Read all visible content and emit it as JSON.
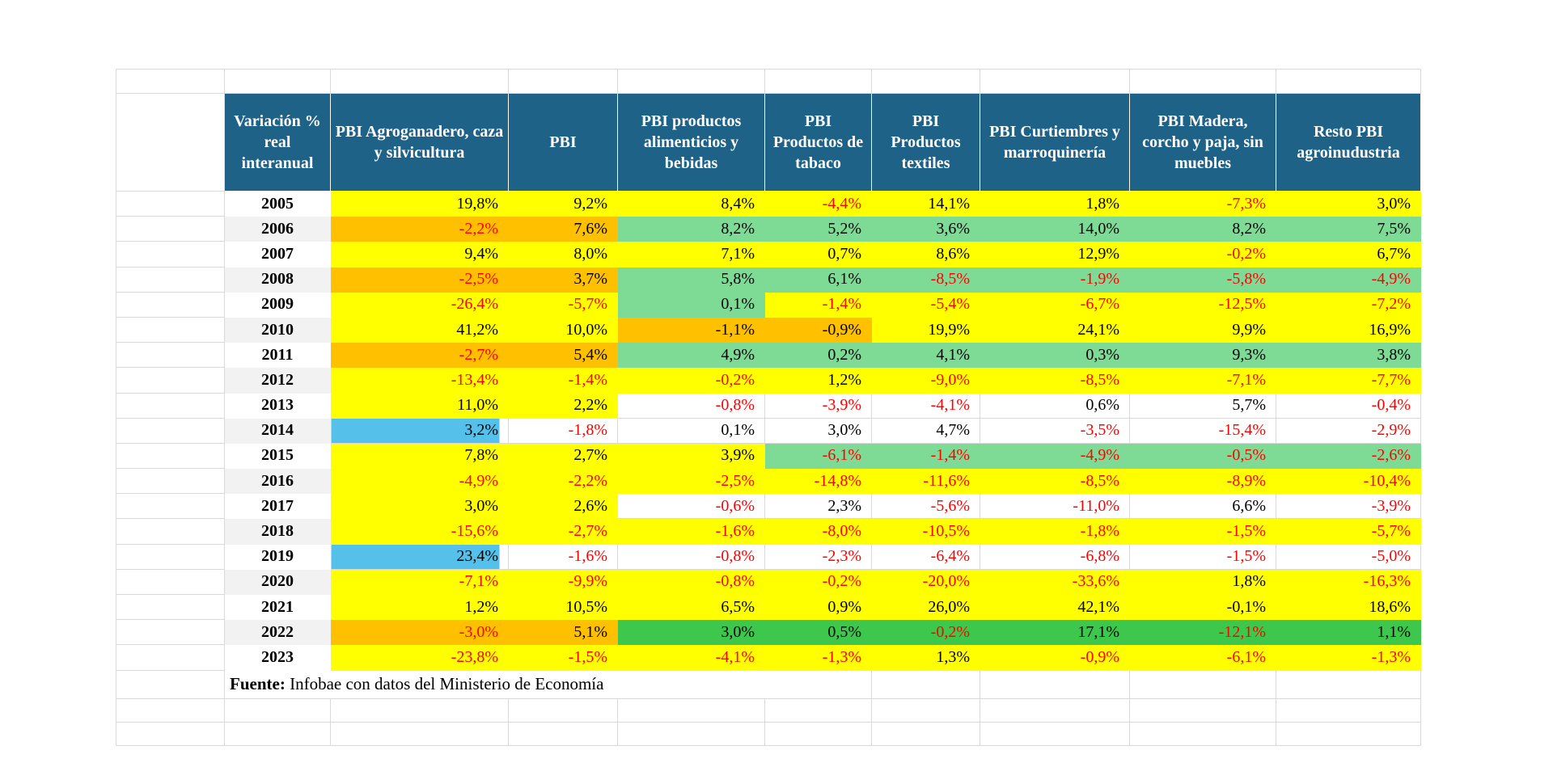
{
  "colors": {
    "header_bg": "#1F6287",
    "header_text": "#FFFFFF",
    "yellow": "#FFFF00",
    "orange": "#FFC000",
    "green": "#7EDB96",
    "dark_green": "#3DC74D",
    "blue": "#55C1EA",
    "white": "#FFFFFF",
    "band_gray": "#F2F2F2",
    "gridline": "#D9D9D9",
    "negative_text": "#FF0000",
    "positive_text": "#000000"
  },
  "black_negative_overrides": [
    {
      "year": "2010",
      "col": 2
    },
    {
      "year": "2010",
      "col": 3
    },
    {
      "year": "2021",
      "col": 6
    }
  ],
  "chart_data": {
    "type": "table",
    "title": "Variación % real interanual",
    "columns": [
      "PBI Agroganadero, caza y silvicultura",
      "PBI",
      "PBI productos alimenticios y bebidas",
      "PBI Productos de tabaco",
      "PBI Productos textiles",
      "PBI Curtiembres y marroquinería",
      "PBI Madera, corcho y paja, sin muebles",
      "Resto PBI agroinudustria"
    ],
    "fill_legend": {
      "Y": "yellow",
      "O": "orange",
      "G": "green",
      "D": "dark_green",
      "B": "blue",
      "W": "white"
    },
    "rows": [
      {
        "year": "2005",
        "values": [
          "19,8%",
          "9,2%",
          "8,4%",
          "-4,4%",
          "14,1%",
          "1,8%",
          "-7,3%",
          "3,0%"
        ],
        "fills": [
          "Y",
          "Y",
          "Y",
          "Y",
          "Y",
          "Y",
          "Y",
          "Y"
        ]
      },
      {
        "year": "2006",
        "values": [
          "-2,2%",
          "7,6%",
          "8,2%",
          "5,2%",
          "3,6%",
          "14,0%",
          "8,2%",
          "7,5%"
        ],
        "fills": [
          "O",
          "O",
          "G",
          "G",
          "G",
          "G",
          "G",
          "G"
        ]
      },
      {
        "year": "2007",
        "values": [
          "9,4%",
          "8,0%",
          "7,1%",
          "0,7%",
          "8,6%",
          "12,9%",
          "-0,2%",
          "6,7%"
        ],
        "fills": [
          "Y",
          "Y",
          "Y",
          "Y",
          "Y",
          "Y",
          "Y",
          "Y"
        ]
      },
      {
        "year": "2008",
        "values": [
          "-2,5%",
          "3,7%",
          "5,8%",
          "6,1%",
          "-8,5%",
          "-1,9%",
          "-5,8%",
          "-4,9%"
        ],
        "fills": [
          "O",
          "O",
          "G",
          "G",
          "G",
          "G",
          "G",
          "G"
        ]
      },
      {
        "year": "2009",
        "values": [
          "-26,4%",
          "-5,7%",
          "0,1%",
          "-1,4%",
          "-5,4%",
          "-6,7%",
          "-12,5%",
          "-7,2%"
        ],
        "fills": [
          "Y",
          "Y",
          "G",
          "Y",
          "Y",
          "Y",
          "Y",
          "Y"
        ]
      },
      {
        "year": "2010",
        "values": [
          "41,2%",
          "10,0%",
          "-1,1%",
          "-0,9%",
          "19,9%",
          "24,1%",
          "9,9%",
          "16,9%"
        ],
        "fills": [
          "Y",
          "Y",
          "O",
          "O",
          "Y",
          "Y",
          "Y",
          "Y"
        ]
      },
      {
        "year": "2011",
        "values": [
          "-2,7%",
          "5,4%",
          "4,9%",
          "0,2%",
          "4,1%",
          "0,3%",
          "9,3%",
          "3,8%"
        ],
        "fills": [
          "O",
          "O",
          "G",
          "G",
          "G",
          "G",
          "G",
          "G"
        ]
      },
      {
        "year": "2012",
        "values": [
          "-13,4%",
          "-1,4%",
          "-0,2%",
          "1,2%",
          "-9,0%",
          "-8,5%",
          "-7,1%",
          "-7,7%"
        ],
        "fills": [
          "Y",
          "Y",
          "Y",
          "Y",
          "Y",
          "Y",
          "Y",
          "Y"
        ]
      },
      {
        "year": "2013",
        "values": [
          "11,0%",
          "2,2%",
          "-0,8%",
          "-3,9%",
          "-4,1%",
          "0,6%",
          "5,7%",
          "-0,4%"
        ],
        "fills": [
          "Y",
          "Y",
          "W",
          "W",
          "W",
          "W",
          "W",
          "W"
        ]
      },
      {
        "year": "2014",
        "values": [
          "3,2%",
          "-1,8%",
          "0,1%",
          "3,0%",
          "4,7%",
          "-3,5%",
          "-15,4%",
          "-2,9%"
        ],
        "fills": [
          "B",
          "W",
          "W",
          "W",
          "W",
          "W",
          "W",
          "W"
        ],
        "blue_stop": 95
      },
      {
        "year": "2015",
        "values": [
          "7,8%",
          "2,7%",
          "3,9%",
          "-6,1%",
          "-1,4%",
          "-4,9%",
          "-0,5%",
          "-2,6%"
        ],
        "fills": [
          "Y",
          "Y",
          "Y",
          "G",
          "G",
          "G",
          "G",
          "G"
        ]
      },
      {
        "year": "2016",
        "values": [
          "-4,9%",
          "-2,2%",
          "-2,5%",
          "-14,8%",
          "-11,6%",
          "-8,5%",
          "-8,9%",
          "-10,4%"
        ],
        "fills": [
          "Y",
          "Y",
          "Y",
          "Y",
          "Y",
          "Y",
          "Y",
          "Y"
        ]
      },
      {
        "year": "2017",
        "values": [
          "3,0%",
          "2,6%",
          "-0,6%",
          "2,3%",
          "-5,6%",
          "-11,0%",
          "6,6%",
          "-3,9%"
        ],
        "fills": [
          "Y",
          "Y",
          "W",
          "W",
          "W",
          "W",
          "W",
          "W"
        ]
      },
      {
        "year": "2018",
        "values": [
          "-15,6%",
          "-2,7%",
          "-1,6%",
          "-8,0%",
          "-10,5%",
          "-1,8%",
          "-1,5%",
          "-5,7%"
        ],
        "fills": [
          "Y",
          "Y",
          "Y",
          "Y",
          "Y",
          "Y",
          "Y",
          "Y"
        ]
      },
      {
        "year": "2019",
        "values": [
          "23,4%",
          "-1,6%",
          "-0,8%",
          "-2,3%",
          "-6,4%",
          "-6,8%",
          "-1,5%",
          "-5,0%"
        ],
        "fills": [
          "B",
          "W",
          "W",
          "W",
          "W",
          "W",
          "W",
          "W"
        ],
        "blue_stop": 95
      },
      {
        "year": "2020",
        "values": [
          "-7,1%",
          "-9,9%",
          "-0,8%",
          "-0,2%",
          "-20,0%",
          "-33,6%",
          "1,8%",
          "-16,3%"
        ],
        "fills": [
          "Y",
          "Y",
          "Y",
          "Y",
          "Y",
          "Y",
          "Y",
          "Y"
        ]
      },
      {
        "year": "2021",
        "values": [
          "1,2%",
          "10,5%",
          "6,5%",
          "0,9%",
          "26,0%",
          "42,1%",
          "-0,1%",
          "18,6%"
        ],
        "fills": [
          "Y",
          "Y",
          "Y",
          "Y",
          "Y",
          "Y",
          "Y",
          "Y"
        ]
      },
      {
        "year": "2022",
        "values": [
          "-3,0%",
          "5,1%",
          "3,0%",
          "0,5%",
          "-0,2%",
          "17,1%",
          "-12,1%",
          "1,1%"
        ],
        "fills": [
          "O",
          "O",
          "D",
          "D",
          "D",
          "D",
          "D",
          "D"
        ]
      },
      {
        "year": "2023",
        "values": [
          "-23,8%",
          "-1,5%",
          "-4,1%",
          "-1,3%",
          "1,3%",
          "-0,9%",
          "-6,1%",
          "-1,3%"
        ],
        "fills": [
          "Y",
          "Y",
          "Y",
          "Y",
          "Y",
          "Y",
          "Y",
          "Y"
        ]
      }
    ],
    "source": {
      "label": "Fuente:",
      "text": " Infobae con datos del Ministerio de Economía"
    }
  }
}
